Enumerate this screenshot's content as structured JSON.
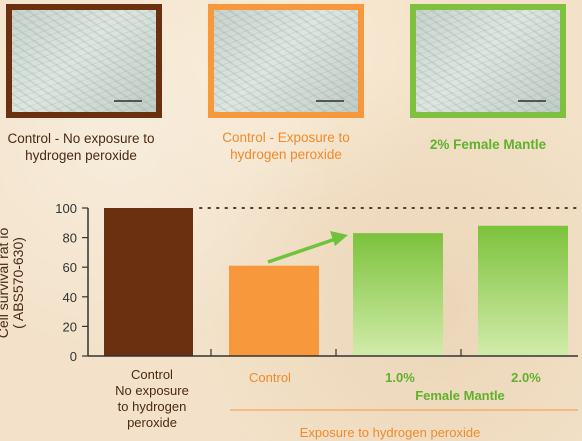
{
  "panels": [
    {
      "label": "Control - No exposure to hydrogen peroxide",
      "border": "#6b3010",
      "text_color": "#4a2a12"
    },
    {
      "label": "Control - Exposure to hydrogen peroxide",
      "border": "#f7983c",
      "text_color": "#f08a2b"
    },
    {
      "label": "2% Female Mantle",
      "border": "#7fc13e",
      "text_color": "#5fb22a"
    }
  ],
  "colors": {
    "control_dark": "#6b3010",
    "control_orange": "#f7983c",
    "green": "#7fc13e",
    "arrow": "#6ec33a"
  },
  "chart_data": {
    "type": "bar",
    "ylabel": "Cell survival ratio (ABS570-630)",
    "ylabel_lines": [
      "Cell survival rat io",
      "( ABS570-630)"
    ],
    "ylim": [
      0,
      100
    ],
    "yticks": [
      0,
      20,
      40,
      60,
      80,
      100
    ],
    "categories": [
      "Control No exposure to hydrogen peroxide",
      "Control",
      "1.0%",
      "2.0%"
    ],
    "values": [
      100,
      61,
      83,
      88
    ],
    "reference_line": 100,
    "category_lines": [
      [
        "Control",
        "No exposure",
        "to hydrogen",
        "peroxide"
      ],
      [
        "Control"
      ],
      [
        "1.0%"
      ],
      [
        "2.0%"
      ]
    ],
    "group_label": "Female Mantle",
    "bracket_label": "Exposure to hydrogen peroxide"
  }
}
